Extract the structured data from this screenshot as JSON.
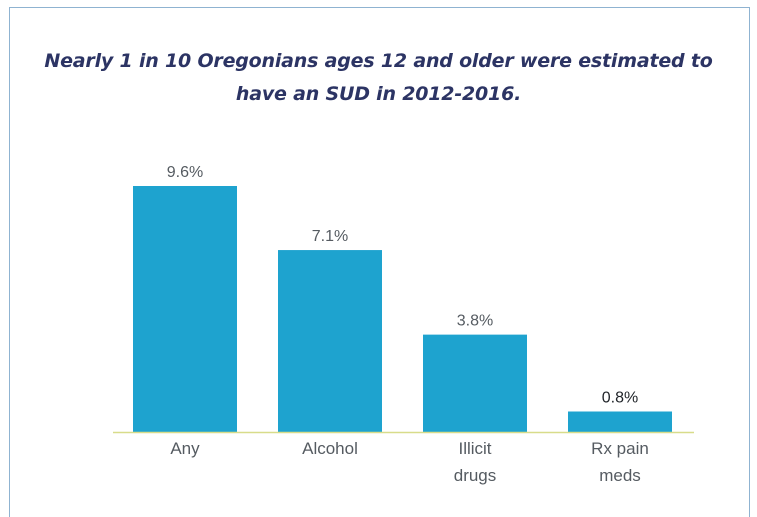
{
  "chart_data": {
    "type": "bar",
    "title": "Nearly 1 in 10 Oregonians ages 12 and older were estimated to have an SUD in 2012-2016.",
    "categories": [
      "Any",
      "Alcohol",
      "Illicit drugs",
      "Rx pain meds"
    ],
    "category_lines": [
      [
        "Any"
      ],
      [
        "Alcohol"
      ],
      [
        "Illicit",
        "drugs"
      ],
      [
        "Rx pain",
        "meds"
      ]
    ],
    "values": [
      9.6,
      7.1,
      3.8,
      0.8
    ],
    "value_labels": [
      "9.6%",
      "7.1%",
      "3.8%",
      "0.8%"
    ],
    "xlabel": "",
    "ylabel": "",
    "ylim": [
      0,
      9.6
    ],
    "grid": false,
    "legend": "none",
    "bar_color": "#1ea3cf",
    "axis_color": "#d8dc8a"
  }
}
